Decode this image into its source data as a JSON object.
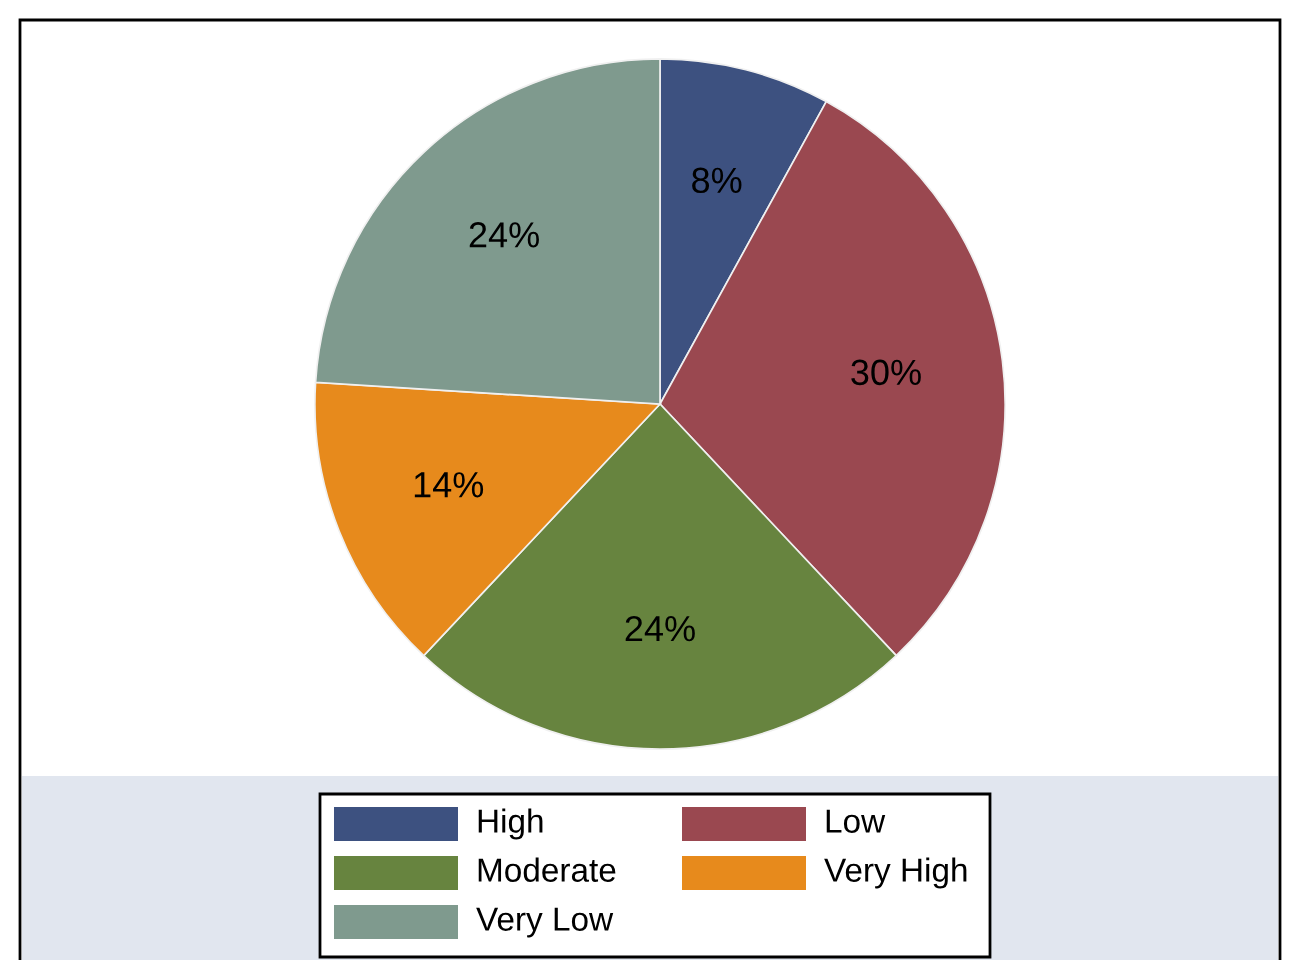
{
  "chart_data": {
    "type": "pie",
    "categories": [
      "High",
      "Low",
      "Moderate",
      "Very High",
      "Very Low"
    ],
    "values": [
      8,
      30,
      24,
      14,
      24
    ],
    "value_labels": [
      "8%",
      "30%",
      "24%",
      "14%",
      "24%"
    ],
    "colors": [
      "#3d5180",
      "#9a4850",
      "#67843f",
      "#e78a1c",
      "#7f9a8e"
    ],
    "legend": "bottom"
  }
}
